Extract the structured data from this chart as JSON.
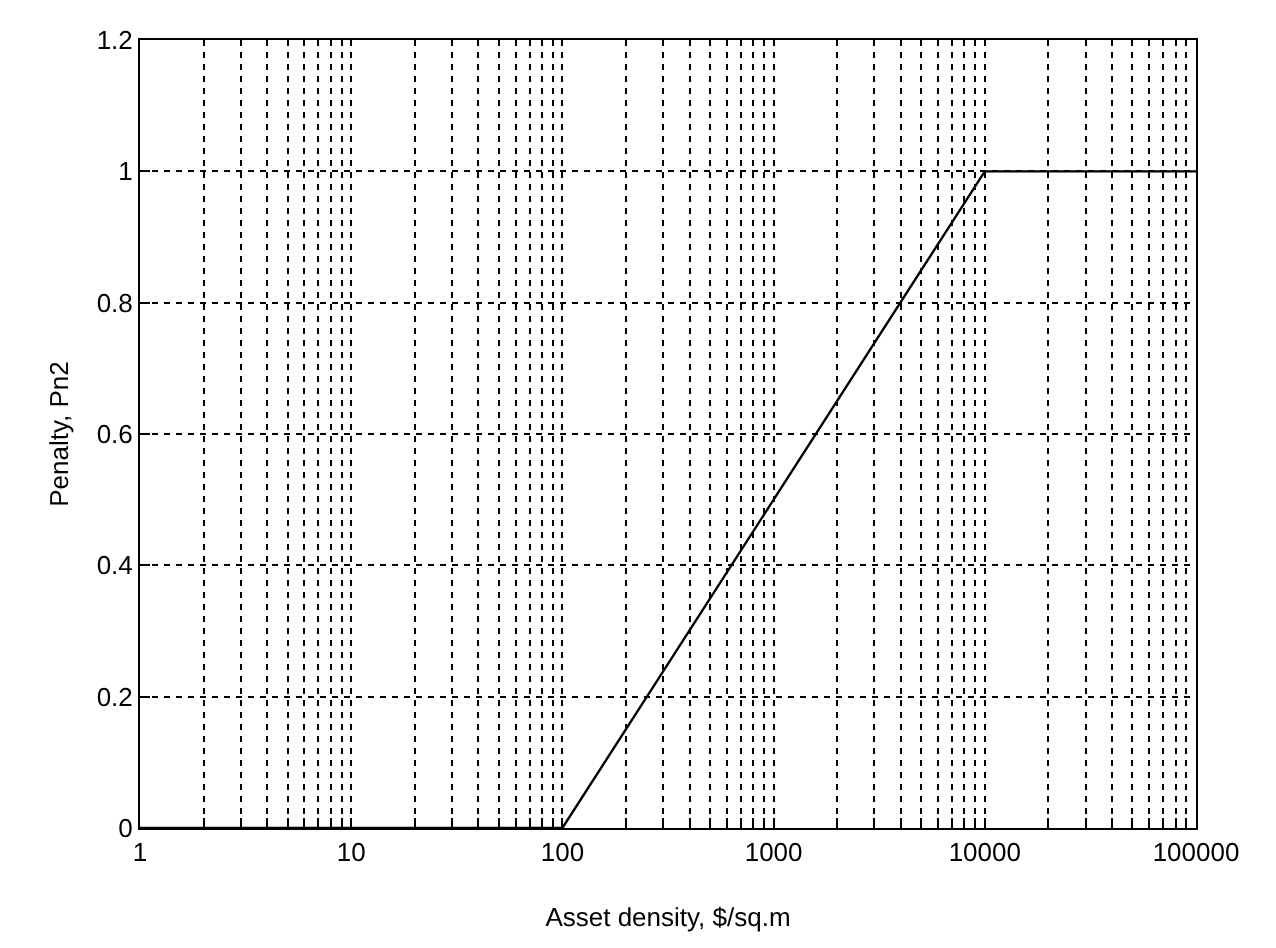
{
  "chart_data": {
    "type": "line",
    "xlabel": "Asset density, $/sq.m",
    "ylabel": "Penalty, Pn2",
    "x": [
      1,
      100,
      10000,
      100000
    ],
    "series": [
      {
        "color": "#000000",
        "values": [
          0,
          0,
          1,
          1
        ]
      }
    ],
    "log": "x",
    "xlim": [
      1,
      100000
    ],
    "xticks": [
      1,
      {
        "value": 2,
        "label": null
      },
      {
        "value": 3,
        "label": null
      },
      {
        "value": 4,
        "label": null
      },
      {
        "value": 5,
        "label": null
      },
      {
        "value": 6,
        "label": null
      },
      {
        "value": 7,
        "label": null
      },
      {
        "value": 8,
        "label": null
      },
      {
        "value": 9,
        "label": null
      },
      10,
      {
        "value": 20,
        "label": null
      },
      {
        "value": 30,
        "label": null
      },
      {
        "value": 40,
        "label": null
      },
      {
        "value": 50,
        "label": null
      },
      {
        "value": 60,
        "label": null
      },
      {
        "value": 70,
        "label": null
      },
      {
        "value": 80,
        "label": null
      },
      {
        "value": 90,
        "label": null
      },
      100,
      {
        "value": 200,
        "label": null
      },
      {
        "value": 300,
        "label": null
      },
      {
        "value": 400,
        "label": null
      },
      {
        "value": 500,
        "label": null
      },
      {
        "value": 600,
        "label": null
      },
      {
        "value": 700,
        "label": null
      },
      {
        "value": 800,
        "label": null
      },
      {
        "value": 900,
        "label": null
      },
      1000,
      {
        "value": 2000,
        "label": null
      },
      {
        "value": 3000,
        "label": null
      },
      {
        "value": 4000,
        "label": null
      },
      {
        "value": 5000,
        "label": null
      },
      {
        "value": 6000,
        "label": null
      },
      {
        "value": 7000,
        "label": null
      },
      {
        "value": 8000,
        "label": null
      },
      {
        "value": 9000,
        "label": null
      },
      10000,
      {
        "value": 20000,
        "label": null
      },
      {
        "value": 30000,
        "label": null
      },
      {
        "value": 40000,
        "label": null
      },
      {
        "value": 50000,
        "label": null
      },
      {
        "value": 60000,
        "label": null
      },
      {
        "value": 70000,
        "label": null
      },
      {
        "value": 80000,
        "label": null
      },
      {
        "value": 90000,
        "label": null
      },
      100000
    ],
    "ylim": [
      0,
      1.2
    ],
    "yticks": [
      0,
      0.2,
      0.4,
      0.6,
      0.8,
      1,
      1.2
    ],
    "grid": true,
    "line_style": "solid",
    "marker": "none"
  }
}
